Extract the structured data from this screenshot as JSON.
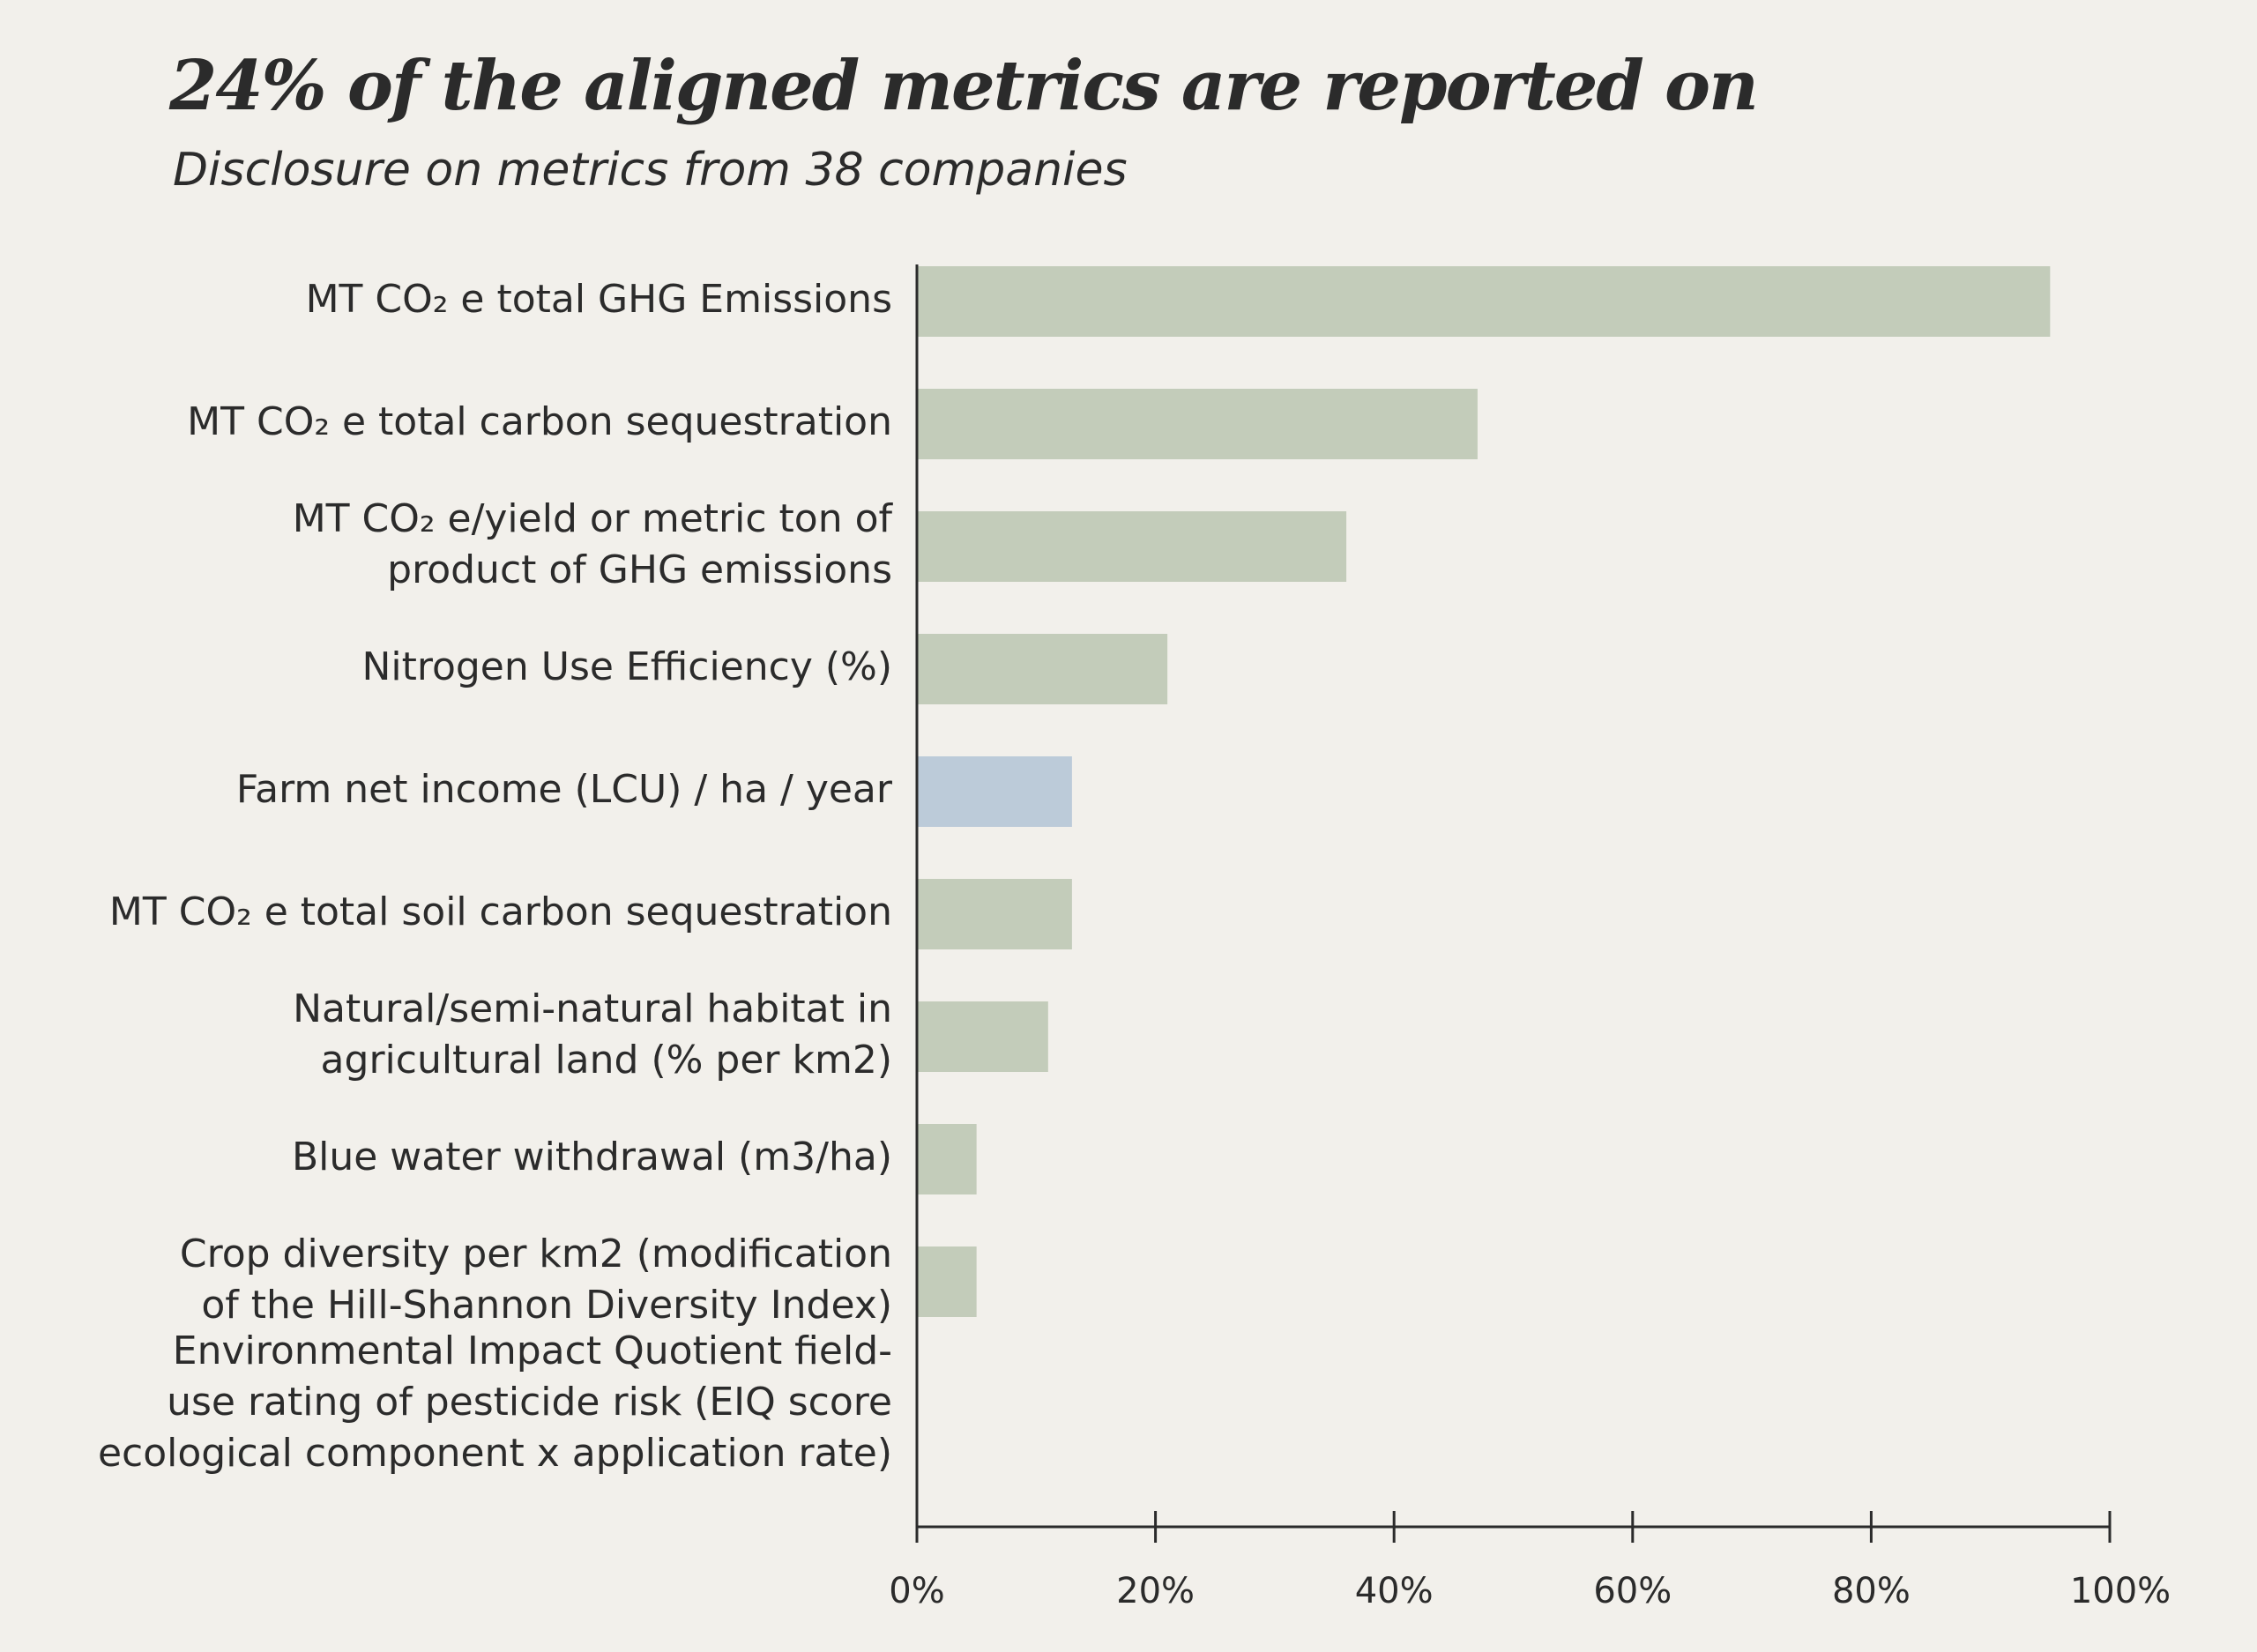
{
  "title": "24% of the aligned metrics are reported on",
  "subtitle": "Disclosure on metrics from 38 companies",
  "chart_data": {
    "type": "bar",
    "orientation": "horizontal",
    "categories": [
      [
        "MT CO₂ e total GHG Emissions"
      ],
      [
        "MT CO₂ e total carbon sequestration"
      ],
      [
        "MT CO₂ e/yield or metric ton of",
        "product of GHG emissions"
      ],
      [
        "Nitrogen Use Efficiency (%)"
      ],
      [
        "Farm net income (LCU) / ha / year"
      ],
      [
        "MT CO₂ e total soil carbon sequestration"
      ],
      [
        "Natural/semi-natural habitat in",
        "agricultural land (% per km2)"
      ],
      [
        "Blue water withdrawal (m3/ha)"
      ],
      [
        "Crop diversity per km2 (modification",
        "of the Hill-Shannon Diversity Index)"
      ],
      [
        "Environmental Impact Quotient field-",
        "use rating of pesticide risk (EIQ score",
        "ecological component x application rate)"
      ]
    ],
    "values": [
      95,
      47,
      36,
      21,
      13,
      13,
      11,
      5,
      5,
      0
    ],
    "bar_colors": [
      "#c3ccba",
      "#c3ccba",
      "#c3ccba",
      "#c3ccba",
      "#bccbd9",
      "#c3ccba",
      "#c3ccba",
      "#c3ccba",
      "#c3ccba",
      "#c3ccba"
    ],
    "xlim": [
      0,
      100
    ],
    "xticks": [
      0,
      20,
      40,
      60,
      80,
      100
    ],
    "xtick_labels": [
      "0%",
      "20%",
      "40%",
      "60%",
      "80%",
      "100%"
    ],
    "grid": false,
    "axis_color": "#2b2b2b"
  }
}
